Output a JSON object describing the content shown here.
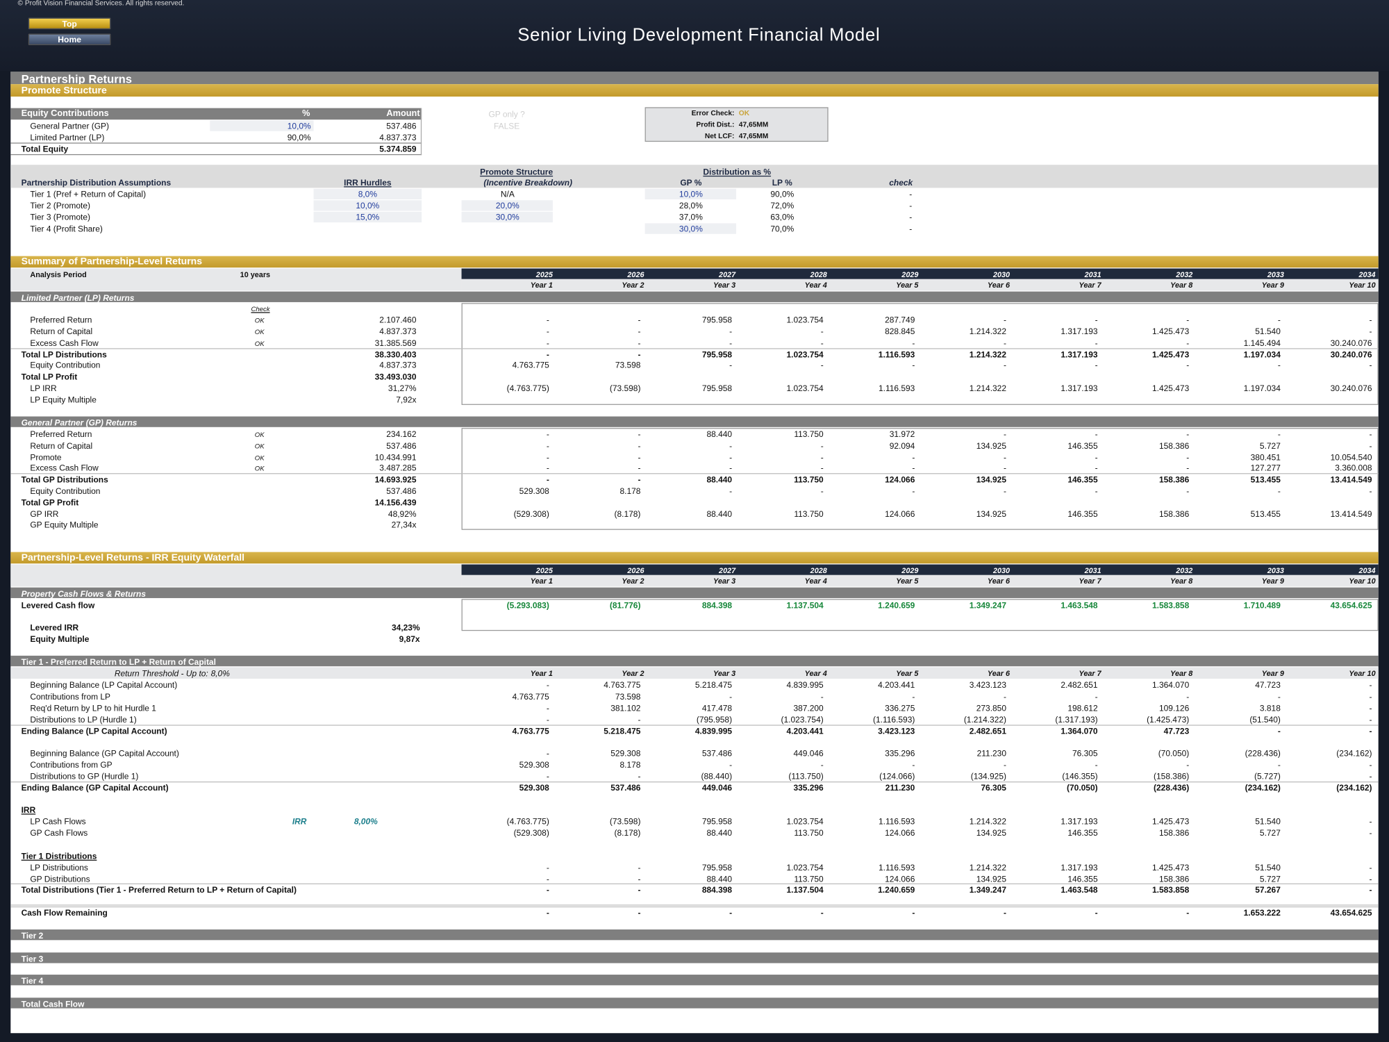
{
  "header": {
    "copyright": "© Profit Vision Financial Services. All rights reserved.",
    "buttons": [
      "Top",
      "Home"
    ],
    "title": "Senior Living Development Financial Model"
  },
  "sheet_title": "Partnership Returns",
  "promote": {
    "title": "Promote Structure",
    "equity": {
      "headers": [
        "Equity Contributions",
        "%",
        "Amount"
      ],
      "rows": [
        [
          "General Partner (GP)",
          "10,0%",
          "537.486"
        ],
        [
          "Limited Partner (LP)",
          "90,0%",
          "4.837.373"
        ]
      ],
      "total": [
        "Total Equity",
        "5.374.859"
      ]
    },
    "gp_only": {
      "label": "GP only ?",
      "value": "FALSE"
    },
    "error_check": [
      [
        "Error Check:",
        "OK"
      ],
      [
        "Profit Dist.:",
        "47,65MM"
      ],
      [
        "Net LCF:",
        "47,65MM"
      ]
    ],
    "distribution": {
      "group_headers": [
        "Promote Structure",
        "Distribution as %"
      ],
      "headers": [
        "Partnership Distribution Assumptions",
        "IRR Hurdles",
        "(Incentive Breakdown)",
        "GP %",
        "LP %",
        "check"
      ],
      "rows": [
        [
          "Tier 1 (Pref + Return of Capital)",
          "8,0%",
          "N/A",
          "10,0%",
          "90,0%",
          "-"
        ],
        [
          "Tier 2 (Promote)",
          "10,0%",
          "20,0%",
          "28,0%",
          "72,0%",
          "-"
        ],
        [
          "Tier 3 (Promote)",
          "15,0%",
          "30,0%",
          "37,0%",
          "63,0%",
          "-"
        ],
        [
          "Tier 4 (Profit Share)",
          null,
          null,
          "30,0%",
          "70,0%",
          "-"
        ]
      ]
    }
  },
  "summary": {
    "title": "Summary of Partnership-Level Returns",
    "analysis_period": [
      "Analysis Period",
      "10 years"
    ],
    "years": [
      2025,
      2026,
      2027,
      2028,
      2029,
      2030,
      2031,
      2032,
      2033,
      2034
    ],
    "year_labels": [
      "Year 1",
      "Year 2",
      "Year 3",
      "Year 4",
      "Year 5",
      "Year 6",
      "Year 7",
      "Year 8",
      "Year 9",
      "Year 10"
    ],
    "check_label": "Check",
    "groups": [
      {
        "title": "Limited Partner (LP) Returns",
        "rows": [
          {
            "label": "Preferred Return",
            "check": "OK",
            "total": "2.107.460",
            "values": [
              "-",
              "-",
              "795.958",
              "1.023.754",
              "287.749",
              "-",
              "-",
              "-",
              "-",
              "-"
            ]
          },
          {
            "label": "Return of Capital",
            "check": "OK",
            "total": "4.837.373",
            "values": [
              "-",
              "-",
              "-",
              "-",
              "828.845",
              "1.214.322",
              "1.317.193",
              "1.425.473",
              "51.540",
              "-"
            ]
          },
          {
            "label": "Excess Cash Flow",
            "check": "OK",
            "total": "31.385.569",
            "values": [
              "-",
              "-",
              "-",
              "-",
              "-",
              "-",
              "-",
              "-",
              "1.145.494",
              "30.240.076"
            ]
          },
          {
            "label": "Total LP Distributions",
            "bold": true,
            "total": "38.330.403",
            "values": [
              "-",
              "-",
              "795.958",
              "1.023.754",
              "1.116.593",
              "1.214.322",
              "1.317.193",
              "1.425.473",
              "1.197.034",
              "30.240.076"
            ]
          },
          {
            "label": "Equity Contribution",
            "total": "4.837.373",
            "values": [
              "4.763.775",
              "73.598",
              "-",
              "-",
              "-",
              "-",
              "-",
              "-",
              "-",
              "-"
            ]
          },
          {
            "label": "Total LP Profit",
            "bold": true,
            "total": "33.493.030"
          },
          {
            "label": "LP IRR",
            "total": "31,27%",
            "values": [
              "(4.763.775)",
              "(73.598)",
              "795.958",
              "1.023.754",
              "1.116.593",
              "1.214.322",
              "1.317.193",
              "1.425.473",
              "1.197.034",
              "30.240.076"
            ]
          },
          {
            "label": "LP Equity Multiple",
            "total": "7,92x"
          }
        ]
      },
      {
        "title": "General Partner (GP) Returns",
        "rows": [
          {
            "label": "Preferred Return",
            "check": "OK",
            "total": "234.162",
            "values": [
              "-",
              "-",
              "88.440",
              "113.750",
              "31.972",
              "-",
              "-",
              "-",
              "-",
              "-"
            ]
          },
          {
            "label": "Return of Capital",
            "check": "OK",
            "total": "537.486",
            "values": [
              "-",
              "-",
              "-",
              "-",
              "92.094",
              "134.925",
              "146.355",
              "158.386",
              "5.727",
              "-"
            ]
          },
          {
            "label": "Promote",
            "check": "OK",
            "total": "10.434.991",
            "values": [
              "-",
              "-",
              "-",
              "-",
              "-",
              "-",
              "-",
              "-",
              "380.451",
              "10.054.540"
            ]
          },
          {
            "label": "Excess Cash Flow",
            "check": "OK",
            "total": "3.487.285",
            "values": [
              "-",
              "-",
              "-",
              "-",
              "-",
              "-",
              "-",
              "-",
              "127.277",
              "3.360.008"
            ]
          },
          {
            "label": "Total GP Distributions",
            "bold": true,
            "total": "14.693.925",
            "values": [
              "-",
              "-",
              "88.440",
              "113.750",
              "124.066",
              "134.925",
              "146.355",
              "158.386",
              "513.455",
              "13.414.549"
            ]
          },
          {
            "label": "Equity Contribution",
            "total": "537.486",
            "values": [
              "529.308",
              "8.178",
              "-",
              "-",
              "-",
              "-",
              "-",
              "-",
              "-",
              "-"
            ]
          },
          {
            "label": "Total GP Profit",
            "bold": true,
            "total": "14.156.439"
          },
          {
            "label": "GP IRR",
            "total": "48,92%",
            "values": [
              "(529.308)",
              "(8.178)",
              "88.440",
              "113.750",
              "124.066",
              "134.925",
              "146.355",
              "158.386",
              "513.455",
              "13.414.549"
            ]
          },
          {
            "label": "GP Equity Multiple",
            "total": "27,34x"
          }
        ]
      }
    ]
  },
  "waterfall": {
    "title": "Partnership-Level Returns - IRR Equity Waterfall",
    "years": [
      2025,
      2026,
      2027,
      2028,
      2029,
      2030,
      2031,
      2032,
      2033,
      2034
    ],
    "year_labels": [
      "Year 1",
      "Year 2",
      "Year 3",
      "Year 4",
      "Year 5",
      "Year 6",
      "Year 7",
      "Year 8",
      "Year 9",
      "Year 10"
    ],
    "property": {
      "title": "Property Cash Flows & Returns",
      "row": {
        "label": "Levered Cash flow",
        "bold": true,
        "values": [
          "(5.293.083)",
          "(81.776)",
          "884.398",
          "1.137.504",
          "1.240.659",
          "1.349.247",
          "1.463.548",
          "1.583.858",
          "1.710.489",
          "43.654.625"
        ]
      },
      "metrics": [
        [
          "Levered IRR",
          "34,23%"
        ],
        [
          "Equity Multiple",
          "9,87x"
        ]
      ]
    },
    "tier1": {
      "title": "Tier 1 - Preferred Return to LP + Return of Capital",
      "threshold": [
        "Return Threshold - Up to:",
        "8,0%"
      ],
      "lp_rows": [
        {
          "label": "Beginning Balance (LP Capital Account)",
          "values": [
            "-",
            "4.763.775",
            "5.218.475",
            "4.839.995",
            "4.203.441",
            "3.423.123",
            "2.482.651",
            "1.364.070",
            "47.723",
            "-"
          ]
        },
        {
          "label": "Contributions from LP",
          "values": [
            "4.763.775",
            "73.598",
            "-",
            "-",
            "-",
            "-",
            "-",
            "-",
            "-",
            "-"
          ]
        },
        {
          "label": "Req'd Return by LP to hit Hurdle 1",
          "values": [
            "-",
            "381.102",
            "417.478",
            "387.200",
            "336.275",
            "273.850",
            "198.612",
            "109.126",
            "3.818",
            "-"
          ]
        },
        {
          "label": "Distributions to LP (Hurdle 1)",
          "values": [
            "-",
            "-",
            "(795.958)",
            "(1.023.754)",
            "(1.116.593)",
            "(1.214.322)",
            "(1.317.193)",
            "(1.425.473)",
            "(51.540)",
            "-"
          ]
        },
        {
          "label": "Ending Balance (LP Capital Account)",
          "bold": true,
          "values": [
            "4.763.775",
            "5.218.475",
            "4.839.995",
            "4.203.441",
            "3.423.123",
            "2.482.651",
            "1.364.070",
            "47.723",
            "-",
            "-"
          ]
        }
      ],
      "gp_rows": [
        {
          "label": "Beginning Balance (GP Capital Account)",
          "values": [
            "-",
            "529.308",
            "537.486",
            "449.046",
            "335.296",
            "211.230",
            "76.305",
            "(70.050)",
            "(228.436)",
            "(234.162)"
          ]
        },
        {
          "label": "Contributions from GP",
          "values": [
            "529.308",
            "8.178",
            "-",
            "-",
            "-",
            "-",
            "-",
            "-",
            "-",
            "-"
          ]
        },
        {
          "label": "Distributions to GP (Hurdle 1)",
          "values": [
            "-",
            "-",
            "(88.440)",
            "(113.750)",
            "(124.066)",
            "(134.925)",
            "(146.355)",
            "(158.386)",
            "(5.727)",
            "-"
          ]
        },
        {
          "label": "Ending Balance (GP Capital Account)",
          "bold": true,
          "values": [
            "529.308",
            "537.486",
            "449.046",
            "335.296",
            "211.230",
            "76.305",
            "(70.050)",
            "(228.436)",
            "(234.162)",
            "(234.162)"
          ]
        }
      ],
      "irr_heading": "IRR",
      "irr": [
        "IRR",
        "8,00%"
      ],
      "cash_flows": [
        {
          "label": "LP Cash Flows",
          "values": [
            "(4.763.775)",
            "(73.598)",
            "795.958",
            "1.023.754",
            "1.116.593",
            "1.214.322",
            "1.317.193",
            "1.425.473",
            "51.540",
            "-"
          ]
        },
        {
          "label": "GP Cash Flows",
          "values": [
            "(529.308)",
            "(8.178)",
            "88.440",
            "113.750",
            "124.066",
            "134.925",
            "146.355",
            "158.386",
            "5.727",
            "-"
          ]
        }
      ],
      "dist_heading": "Tier 1 Distributions",
      "dist_rows": [
        {
          "label": "LP Distributions",
          "values": [
            "-",
            "-",
            "795.958",
            "1.023.754",
            "1.116.593",
            "1.214.322",
            "1.317.193",
            "1.425.473",
            "51.540",
            "-"
          ]
        },
        {
          "label": "GP Distributions",
          "values": [
            "-",
            "-",
            "88.440",
            "113.750",
            "124.066",
            "134.925",
            "146.355",
            "158.386",
            "5.727",
            "-"
          ]
        },
        {
          "label": "Total Distributions (Tier 1 - Preferred Return to LP + Return of Capital)",
          "bold": true,
          "values": [
            "-",
            "-",
            "884.398",
            "1.137.504",
            "1.240.659",
            "1.349.247",
            "1.463.548",
            "1.583.858",
            "57.267",
            "-"
          ]
        }
      ],
      "remaining": {
        "label": "Cash Flow Remaining",
        "bold": true,
        "values": [
          "-",
          "-",
          "-",
          "-",
          "-",
          "-",
          "-",
          "-",
          "1.653.222",
          "43.654.625"
        ]
      }
    },
    "tiers": [
      "Tier 2",
      "Tier 3",
      "Tier 4",
      "Total Cash Flow"
    ]
  }
}
